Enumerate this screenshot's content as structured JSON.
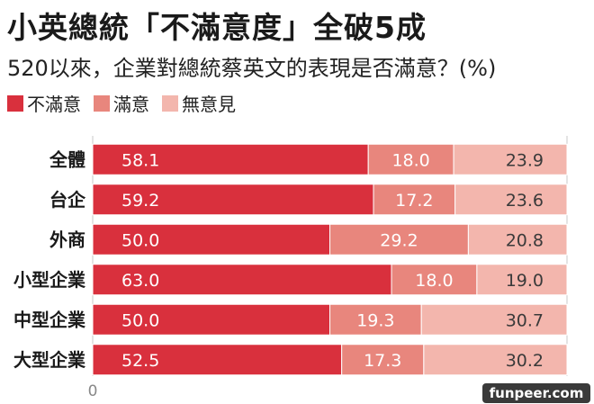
{
  "colors": {
    "dissatisfied": "#d9303d",
    "satisfied": "#e8867d",
    "no_opinion": "#f3b6ad"
  },
  "chart_data": {
    "type": "bar",
    "orientation": "horizontal",
    "stacked": true,
    "title": "小英總統「不滿意度」全破5成",
    "subtitle": "520以來，企業對總統蔡英文的表現是否滿意？(%)",
    "categories": [
      "全體",
      "台企",
      "外商",
      "小型企業",
      "中型企業",
      "大型企業"
    ],
    "series": [
      {
        "name": "不滿意",
        "values": [
          58.1,
          59.2,
          50.0,
          63.0,
          50.0,
          52.5
        ]
      },
      {
        "name": "滿意",
        "values": [
          18.0,
          17.2,
          29.2,
          18.0,
          19.3,
          17.3
        ]
      },
      {
        "name": "無意見",
        "values": [
          23.9,
          23.6,
          20.8,
          19.0,
          30.7,
          30.2
        ]
      }
    ],
    "value_labels": [
      [
        "58.1",
        "59.2",
        "50.0",
        "63.0",
        "50.0",
        "52.5"
      ],
      [
        "18.0",
        "17.2",
        "29.2",
        "18.0",
        "19.3",
        "17.3"
      ],
      [
        "23.9",
        "23.6",
        "20.8",
        "19.0",
        "30.7",
        "30.2"
      ]
    ],
    "xlim": [
      0,
      100
    ],
    "x_ticks": [
      "0",
      "100"
    ],
    "legend_position": "top-left",
    "grid": true
  },
  "watermark": "funpeer.com"
}
